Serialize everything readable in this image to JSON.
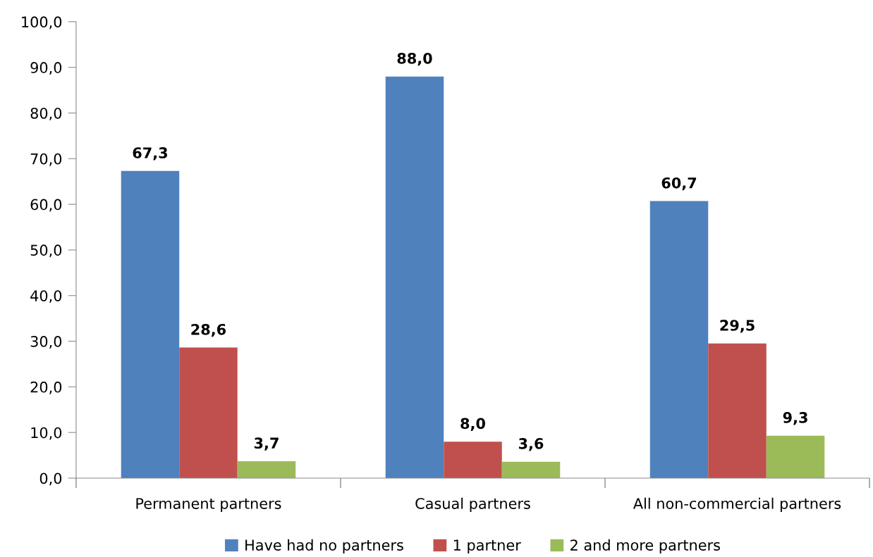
{
  "chart_data": {
    "type": "bar",
    "categories": [
      "Permanent partners",
      "Casual partners",
      "All non-commercial partners"
    ],
    "series": [
      {
        "name": "Have had no partners",
        "color": "#4f81bd",
        "values": [
          67.3,
          88.0,
          60.7
        ],
        "value_labels": [
          "67,3",
          "88,0",
          "60,7"
        ]
      },
      {
        "name": "1 partner",
        "color": "#c0504d",
        "values": [
          28.6,
          8.0,
          29.5
        ],
        "value_labels": [
          "28,6",
          "8,0",
          "29,5"
        ]
      },
      {
        "name": "2 and more partners",
        "color": "#9bbb59",
        "values": [
          3.7,
          3.6,
          9.3
        ],
        "value_labels": [
          "3,7",
          "3,6",
          "9,3"
        ]
      }
    ],
    "ylim": [
      0,
      100
    ],
    "yticks": [
      {
        "value": 0,
        "label": "0,0"
      },
      {
        "value": 10,
        "label": "10,0"
      },
      {
        "value": 20,
        "label": "20,0"
      },
      {
        "value": 30,
        "label": "30,0"
      },
      {
        "value": 40,
        "label": "40,0"
      },
      {
        "value": 50,
        "label": "50,0"
      },
      {
        "value": 60,
        "label": "60,0"
      },
      {
        "value": 70,
        "label": "70,0"
      },
      {
        "value": 80,
        "label": "80,0"
      },
      {
        "value": 90,
        "label": "90,0"
      },
      {
        "value": 100,
        "label": "100,0"
      }
    ],
    "grid": false,
    "legend": "bottom"
  }
}
